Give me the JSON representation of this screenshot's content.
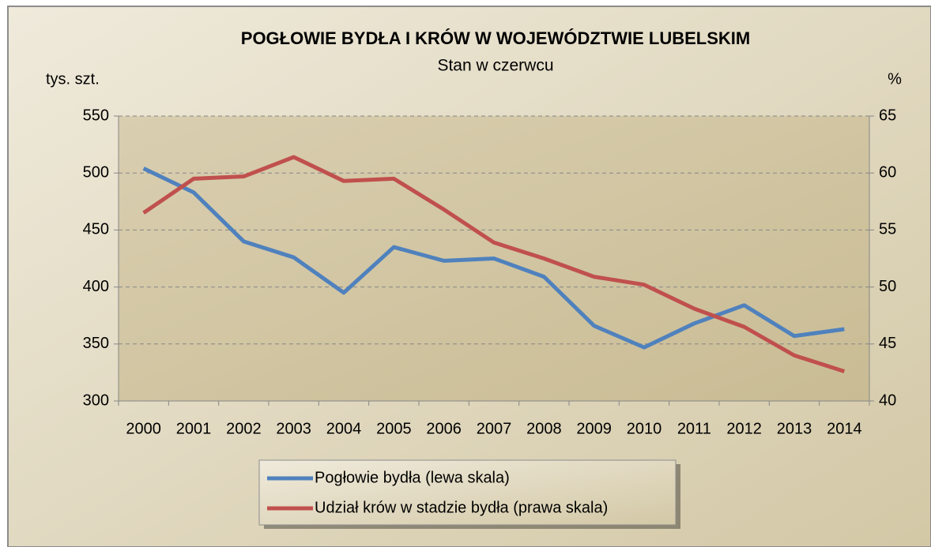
{
  "chart_data": {
    "type": "line",
    "title": "POGŁOWIE BYDŁA I KRÓW W WOJEWÓDZTWIE LUBELSKIM",
    "subtitle": "Stan w czerwcu",
    "y_label": "tys. szt.",
    "y2_label": "%",
    "categories": [
      "2000",
      "2001",
      "2002",
      "2003",
      "2004",
      "2005",
      "2006",
      "2007",
      "2008",
      "2009",
      "2010",
      "2011",
      "2012",
      "2013",
      "2014"
    ],
    "series": [
      {
        "name": "Pogłowie bydła (lewa skala)",
        "color": "#4f81bd",
        "values": [
          504,
          483,
          440,
          426,
          395,
          435,
          423,
          425,
          409,
          366,
          347,
          368,
          384,
          357,
          363
        ]
      },
      {
        "name": "Udział krów w stadzie bydła (prawa skala)",
        "color": "#c0504d",
        "axis": "y2",
        "values": [
          56.5,
          59.5,
          59.7,
          61.4,
          59.3,
          59.5,
          56.8,
          53.9,
          52.5,
          50.9,
          50.2,
          48.1,
          46.5,
          44.0,
          42.6
        ]
      }
    ],
    "ylim": [
      300,
      550
    ],
    "yticks": [
      300,
      350,
      400,
      450,
      500,
      550
    ],
    "y2lim": [
      40,
      65
    ],
    "y2ticks": [
      40,
      45,
      50,
      55,
      60,
      65
    ],
    "grid": true,
    "legend": "bottom"
  }
}
